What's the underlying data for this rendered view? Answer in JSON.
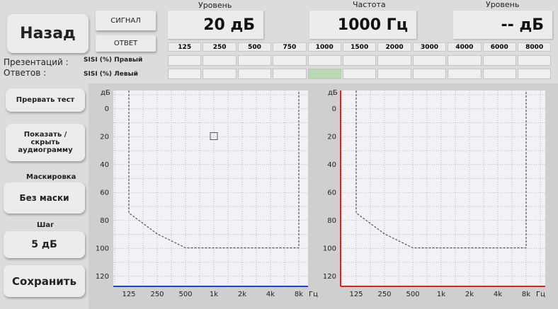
{
  "header": {
    "back": "Назад",
    "signal": "СИГНАЛ",
    "response": "ОТВЕТ",
    "level_left_label": "Уровень",
    "level_left_value": "20 дБ",
    "frequency_label": "Частота",
    "frequency_value": "1000 Гц",
    "level_right_label": "Уровень",
    "level_right_value": "-- дБ"
  },
  "table": {
    "frequencies": [
      "125",
      "250",
      "500",
      "750",
      "1000",
      "1500",
      "2000",
      "3000",
      "4000",
      "6000",
      "8000"
    ],
    "presentations_label": "Презентаций :",
    "responses_label": "Ответов :",
    "rows": [
      "SISI (%) Правый",
      "SISI (%) Левый"
    ]
  },
  "side": {
    "stop_test": "Прервать тест",
    "toggle_audiogram": "Показать / скрыть аудиограмму",
    "masking_label": "Маскировка",
    "masking_value": "Без маски",
    "step_label": "Шаг",
    "step_value": "5 дБ",
    "save": "Сохранить"
  },
  "audiograms": [
    {
      "y_unit": "дБ",
      "y_labels": [
        "0",
        "20",
        "40",
        "60",
        "80",
        "100",
        "120"
      ],
      "x_labels": [
        "125",
        "250",
        "500",
        "1k",
        "2k",
        "4k",
        "8k"
      ],
      "x_unit": "Гц"
    },
    {
      "y_unit": "дБ",
      "y_labels": [
        "0",
        "20",
        "40",
        "60",
        "80",
        "100",
        "120"
      ],
      "x_labels": [
        "125",
        "250",
        "500",
        "1k",
        "2k",
        "4k",
        "8k"
      ],
      "x_unit": "Гц"
    }
  ]
}
